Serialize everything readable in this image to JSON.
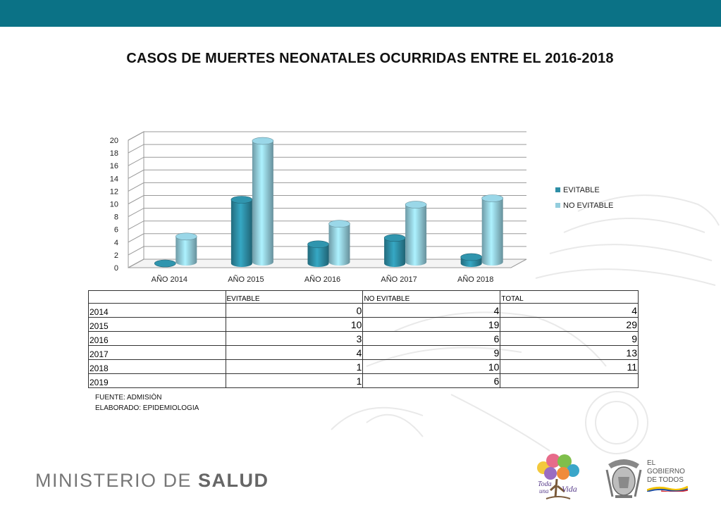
{
  "slide": {
    "title": "CASOS DE MUERTES NEONATALES OCURRIDAS ENTRE EL 2016-2018"
  },
  "colors": {
    "top_bar": "#0b7286",
    "evitable": "#2e8ea6",
    "no_evitable": "#93cddd"
  },
  "chart_data": {
    "type": "bar",
    "style": "3d-clustered-column",
    "categories": [
      "AÑO 2014",
      "AÑO 2015",
      "AÑO 2016",
      "AÑO 2017",
      "AÑO 2018"
    ],
    "series": [
      {
        "name": "EVITABLE",
        "values": [
          0,
          10,
          3,
          4,
          1
        ]
      },
      {
        "name": "NO EVITABLE",
        "values": [
          4,
          19,
          6,
          9,
          10
        ]
      }
    ],
    "ylim": [
      0,
      20
    ],
    "yticks": [
      0,
      2,
      4,
      6,
      8,
      10,
      12,
      14,
      16,
      18,
      20
    ],
    "grid": true,
    "legend": "right"
  },
  "table": {
    "headers": [
      "",
      "EVITABLE",
      "NO EVITABLE",
      "TOTAL"
    ],
    "rows": [
      [
        "2014",
        "0",
        "4",
        "4"
      ],
      [
        "2015",
        "10",
        "19",
        "29"
      ],
      [
        "2016",
        "3",
        "6",
        "9"
      ],
      [
        "2017",
        "4",
        "9",
        "13"
      ],
      [
        "2018",
        "1",
        "10",
        "11"
      ],
      [
        "2019",
        "1",
        "6",
        ""
      ]
    ]
  },
  "notes": {
    "source": "FUENTE: ADMISIÒN",
    "prepared": "ELABORADO: EPIDEMIOLOGIA"
  },
  "footer": {
    "ministry_light": "MINISTERIO DE ",
    "ministry_bold": "SALUD",
    "campaign_line1": "Toda",
    "campaign_line2": "una",
    "campaign_line3": "Vida",
    "gov_line1": "EL",
    "gov_line2": "GOBIERNO",
    "gov_line3": "DE TODOS"
  }
}
